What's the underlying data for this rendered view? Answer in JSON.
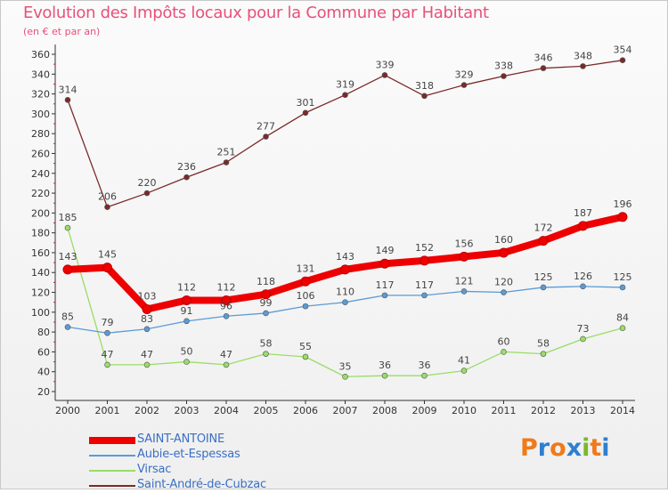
{
  "title": "Evolution des Impôts locaux pour la Commune par Habitant",
  "subtitle": "(en € et par an)",
  "logo": {
    "text": "Proxiti",
    "letters": [
      "P",
      "r",
      "o",
      "x",
      "i",
      "t",
      "i"
    ],
    "colors": [
      "#f07a1a",
      "#2e7fd0",
      "#f07a1a",
      "#2e7fd0",
      "#7ab82a",
      "#f07a1a",
      "#2e7fd0"
    ]
  },
  "chart_data": {
    "type": "line",
    "title": "Evolution des Impôts locaux pour la Commune par Habitant",
    "subtitle": "(en € et par an)",
    "xlabel": "",
    "ylabel": "",
    "x": [
      "2000",
      "2001",
      "2002",
      "2003",
      "2004",
      "2005",
      "2006",
      "2007",
      "2008",
      "2009",
      "2010",
      "2011",
      "2012",
      "2013",
      "2014"
    ],
    "ylim": [
      20,
      360
    ],
    "yticks": [
      20,
      40,
      60,
      80,
      100,
      120,
      140,
      160,
      180,
      200,
      220,
      240,
      260,
      280,
      300,
      320,
      340,
      360
    ],
    "grid": false,
    "legend_position": "bottom-left",
    "series": [
      {
        "name": "SAINT-ANTOINE",
        "color": "#ee0000",
        "values": [
          143,
          145,
          103,
          112,
          112,
          118,
          131,
          143,
          149,
          152,
          156,
          160,
          172,
          187,
          196
        ]
      },
      {
        "name": "Aubie-et-Espessas",
        "color": "#5b9bd5",
        "values": [
          85,
          79,
          83,
          91,
          96,
          99,
          106,
          110,
          117,
          117,
          121,
          120,
          125,
          126,
          125
        ]
      },
      {
        "name": "Virsac",
        "color": "#99dd66",
        "values": [
          185,
          47,
          47,
          50,
          47,
          58,
          55,
          35,
          36,
          36,
          41,
          60,
          58,
          73,
          84
        ]
      },
      {
        "name": "Saint-André-de-Cubzac",
        "color": "#7a2a2a",
        "values": [
          314,
          206,
          220,
          236,
          251,
          277,
          301,
          319,
          339,
          318,
          329,
          338,
          346,
          348,
          354
        ]
      }
    ]
  }
}
